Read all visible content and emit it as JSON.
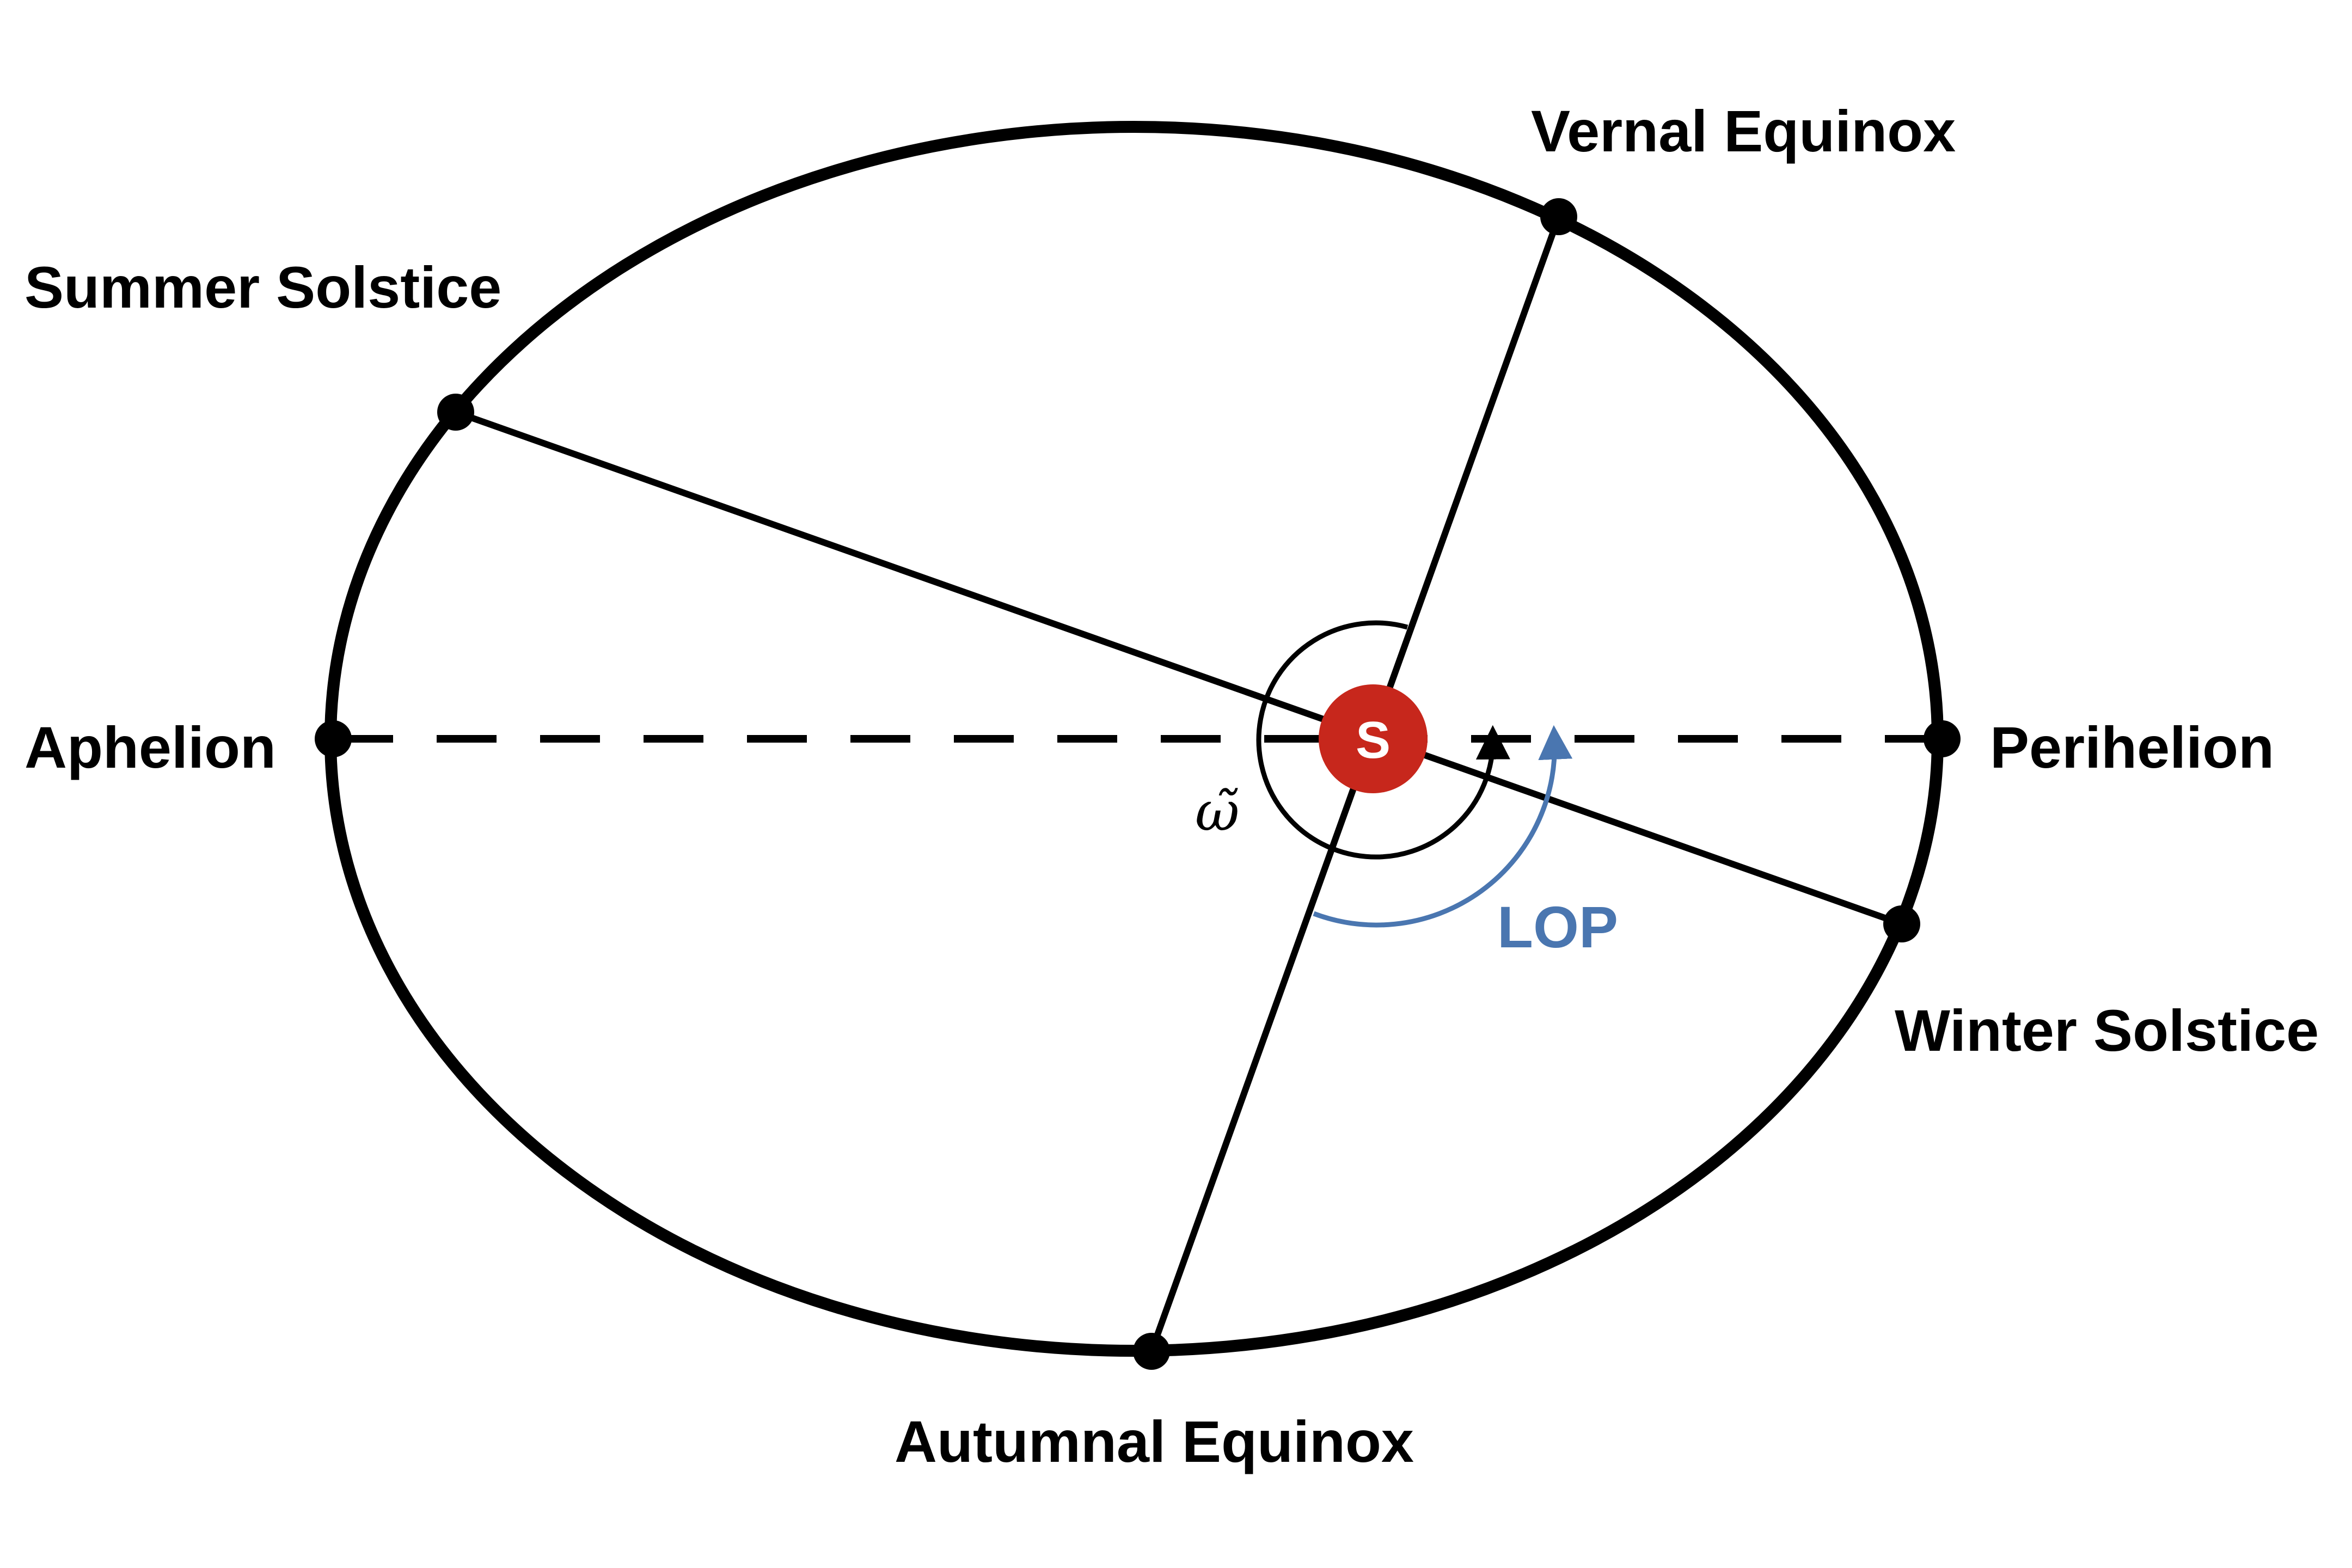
{
  "labels": {
    "vernal_equinox": "Vernal Equinox",
    "summer_solstice": "Summer Solstice",
    "aphelion": "Aphelion",
    "perihelion": "Perihelion",
    "winter_solstice": "Winter Solstice",
    "autumnal_equinox": "Autumnal Equinox",
    "sun": "S",
    "lop": "LOP",
    "longitude_of_perihelion_symbol": "ω̃"
  },
  "colors": {
    "orbit": "#000000",
    "sun": "#c7271c",
    "sun_text": "#ffffff",
    "lop": "#4a76b0",
    "ink": "#000000"
  }
}
